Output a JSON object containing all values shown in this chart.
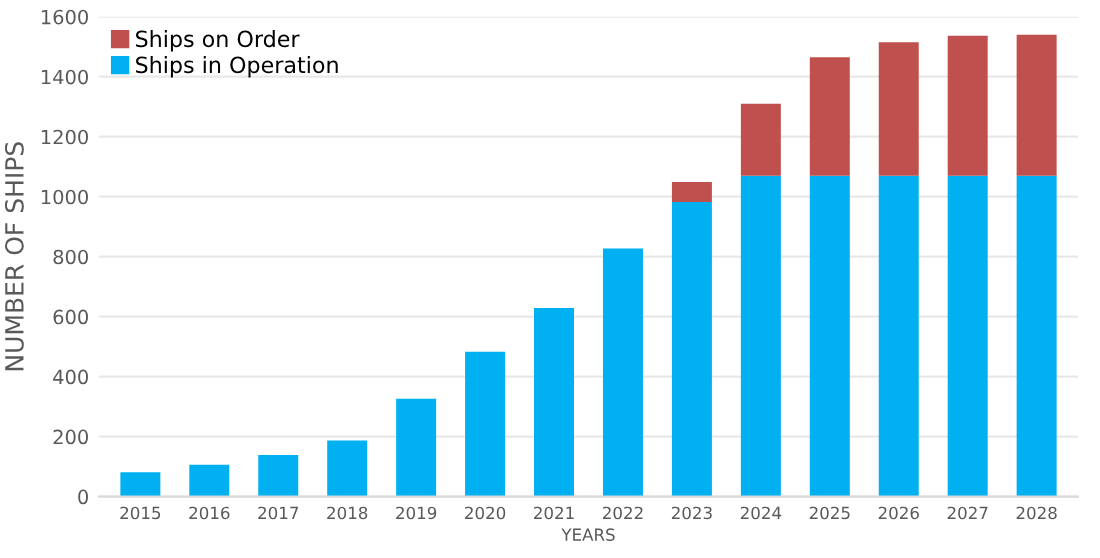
{
  "chart_data": {
    "type": "bar",
    "stacked": true,
    "xlabel": "YEARS",
    "ylabel": "NUMBER OF SHIPS",
    "categories": [
      "2015",
      "2016",
      "2017",
      "2018",
      "2019",
      "2020",
      "2021",
      "2022",
      "2023",
      "2024",
      "2025",
      "2026",
      "2027",
      "2028"
    ],
    "series": [
      {
        "name": "Ships in Operation",
        "color": "#00b0f0",
        "values": [
          81,
          106,
          139,
          187,
          326,
          483,
          629,
          827,
          982,
          1070,
          1070,
          1070,
          1070,
          1070
        ]
      },
      {
        "name": "Ships on Order",
        "color": "#c0504d",
        "values": [
          null,
          null,
          null,
          null,
          null,
          null,
          null,
          null,
          67,
          240,
          395,
          445,
          467,
          470
        ]
      }
    ],
    "ylim": [
      0,
      1600
    ],
    "yticks": [
      0,
      200,
      400,
      600,
      800,
      1000,
      1200,
      1400,
      1600
    ],
    "grid": "y",
    "legend": "top left"
  }
}
